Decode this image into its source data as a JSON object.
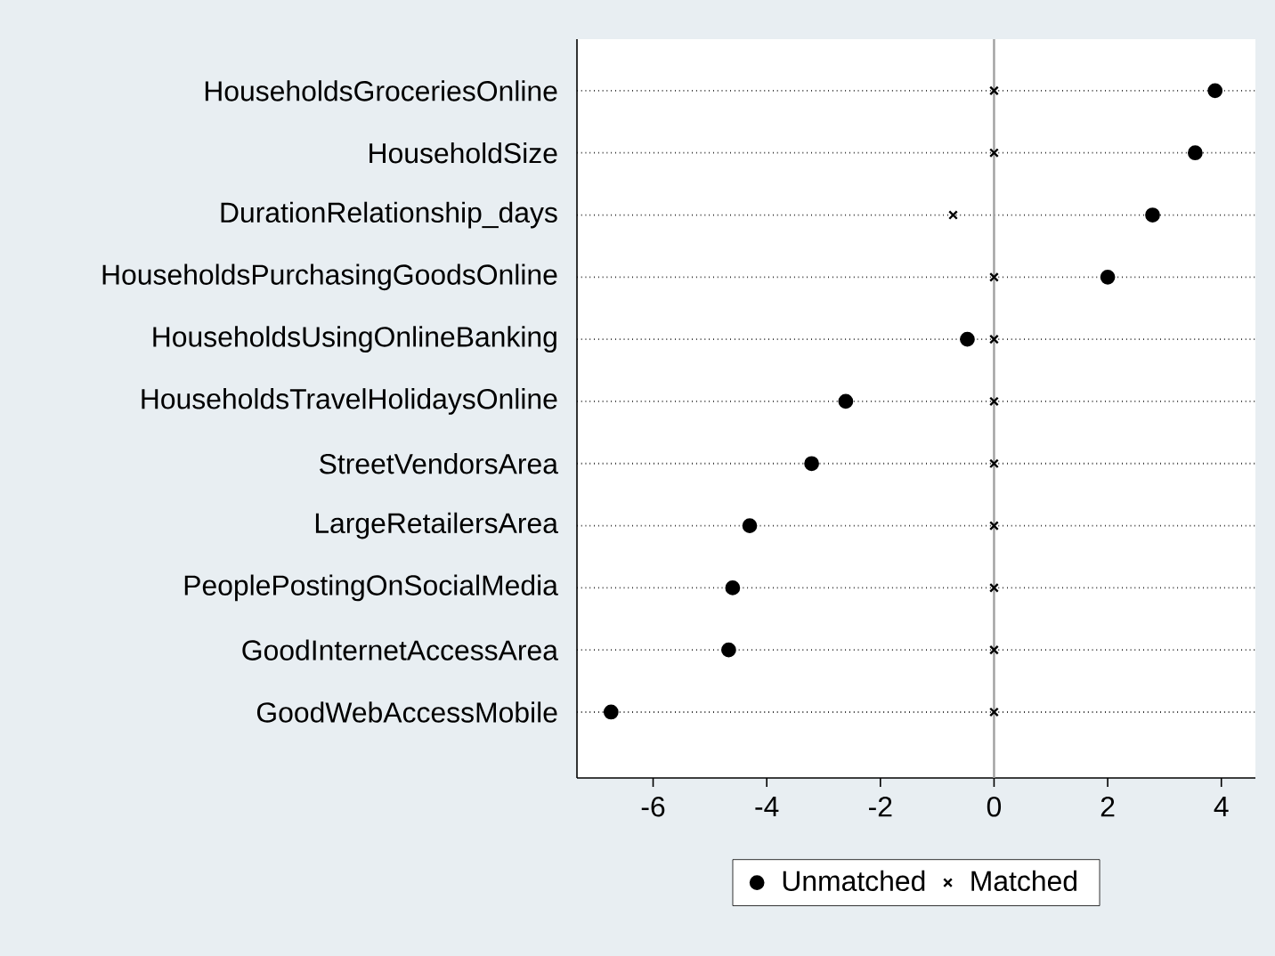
{
  "chart_data": {
    "type": "scatter",
    "orientation": "horizontal",
    "categories": [
      "HouseholdsGroceriesOnline",
      "HouseholdSize",
      "DurationRelationship_days",
      "HouseholdsPurchasingGoodsOnline",
      "HouseholdsUsingOnlineBanking",
      "HouseholdsTravelHolidaysOnline",
      "StreetVendorsArea",
      "LargeRetailersArea",
      "PeoplePostingOnSocialMedia",
      "GoodInternetAccessArea",
      "GoodWebAccessMobile"
    ],
    "series": [
      {
        "name": "Unmatched",
        "color": "#000000",
        "marker": "circle",
        "values": [
          3.89,
          3.54,
          2.79,
          2.0,
          -0.47,
          -2.61,
          -3.21,
          -4.3,
          -4.6,
          -4.67,
          -6.74
        ]
      },
      {
        "name": "Matched",
        "color": "#000000",
        "marker": "cross",
        "values": [
          0,
          0,
          -0.72,
          0,
          0,
          0,
          0,
          0,
          0,
          0,
          0
        ]
      }
    ],
    "xlim": [
      -7.34,
      4.6
    ],
    "xticks": [
      -6,
      -4,
      -2,
      0,
      2,
      4
    ],
    "ref_lines": [
      {
        "axis": "x",
        "value": 0,
        "color": "#a0a0a0"
      }
    ],
    "grid": "y",
    "legend": "bottom"
  }
}
